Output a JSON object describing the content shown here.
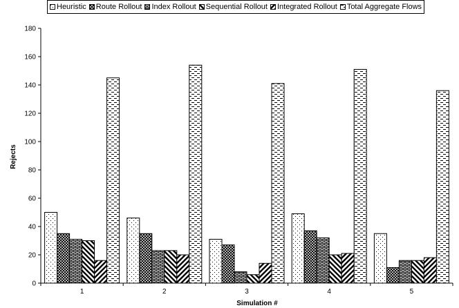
{
  "chart_data": {
    "type": "bar",
    "xlabel": "Simulation #",
    "ylabel": "Rejects",
    "categories": [
      "1",
      "2",
      "3",
      "4",
      "5"
    ],
    "ylim": [
      0,
      180
    ],
    "yticks": [
      0,
      20,
      40,
      60,
      80,
      100,
      120,
      140,
      160,
      180
    ],
    "grid": false,
    "legend_position": "top",
    "series": [
      {
        "name": "Heuristic",
        "pattern": "dots",
        "values": [
          50,
          46,
          31,
          49,
          35
        ]
      },
      {
        "name": "Route Rollout",
        "pattern": "crosshatch",
        "values": [
          35,
          35,
          27,
          37,
          11
        ]
      },
      {
        "name": "Index Rollout",
        "pattern": "bricks",
        "values": [
          31,
          23,
          8,
          32,
          16
        ]
      },
      {
        "name": "Sequential Rollout",
        "pattern": "wide-diagonal-down",
        "values": [
          30,
          23,
          6,
          20,
          16
        ]
      },
      {
        "name": "Integrated Rollout",
        "pattern": "wide-diagonal-up",
        "values": [
          16,
          20,
          14,
          21,
          18
        ]
      },
      {
        "name": "Total Aggregate Flows",
        "pattern": "dashes",
        "values": [
          145,
          154,
          141,
          151,
          136
        ]
      }
    ]
  }
}
